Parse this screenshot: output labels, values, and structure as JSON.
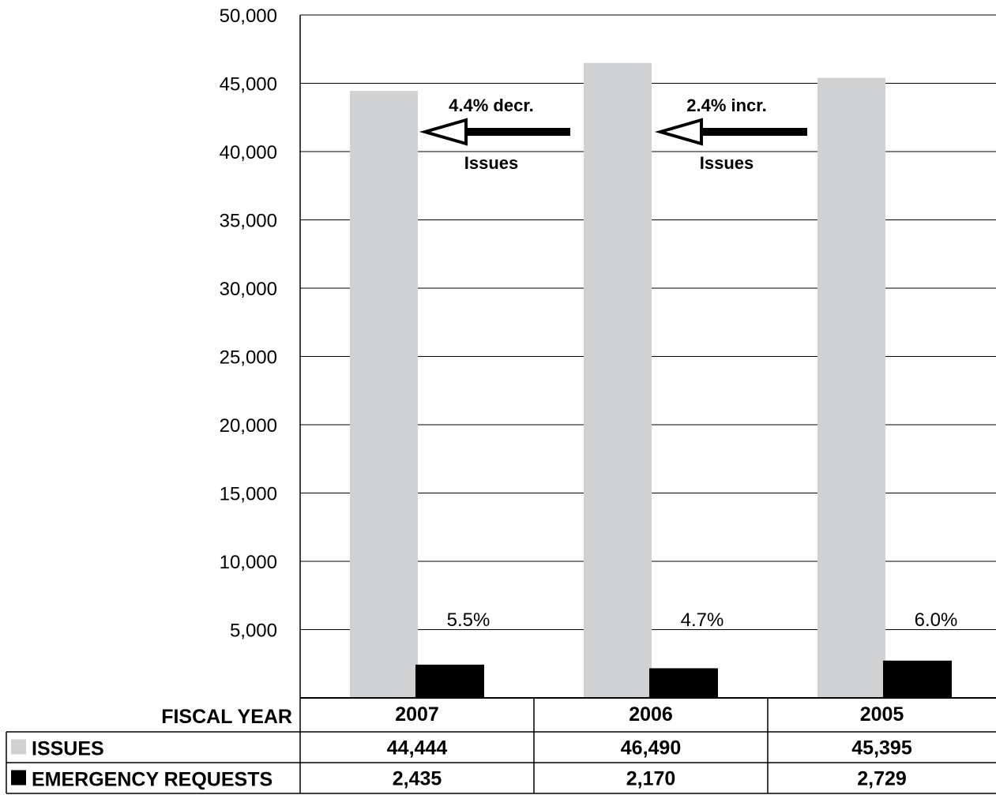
{
  "chart_data": {
    "type": "bar",
    "categories": [
      "2007",
      "2006",
      "2005"
    ],
    "series": [
      {
        "name": "ISSUES",
        "values": [
          44444,
          46490,
          45395
        ],
        "color": "#d0d1d3"
      },
      {
        "name": "EMERGENCY REQUESTS",
        "values": [
          2435,
          2170,
          2729
        ],
        "color": "#000000"
      }
    ],
    "ylim": [
      0,
      50000
    ],
    "yticks": [
      5000,
      10000,
      15000,
      20000,
      25000,
      30000,
      35000,
      40000,
      45000,
      50000
    ],
    "ytick_labels": [
      "5,000",
      "10,000",
      "15,000",
      "20,000",
      "25,000",
      "30,000",
      "35,000",
      "40,000",
      "45,000",
      "50,000"
    ],
    "grid": true,
    "percent_labels": [
      "5.5%",
      "4.7%",
      "6.0%"
    ],
    "annotations": [
      {
        "top": "4.4% decr.",
        "bottom": "Issues",
        "between": [
          "2007",
          "2006"
        ]
      },
      {
        "top": "2.4% incr.",
        "bottom": "Issues",
        "between": [
          "2006",
          "2005"
        ]
      }
    ],
    "table": {
      "header_label": "FISCAL YEAR",
      "years": [
        "2007",
        "2006",
        "2005"
      ],
      "rows": [
        {
          "label": "ISSUES",
          "values": [
            "44,444",
            "46,490",
            "45,395"
          ],
          "swatch": "#d0d1d3"
        },
        {
          "label": "EMERGENCY REQUESTS",
          "values": [
            "2,435",
            "2,170",
            "2,729"
          ],
          "swatch": "#000000"
        }
      ]
    }
  }
}
